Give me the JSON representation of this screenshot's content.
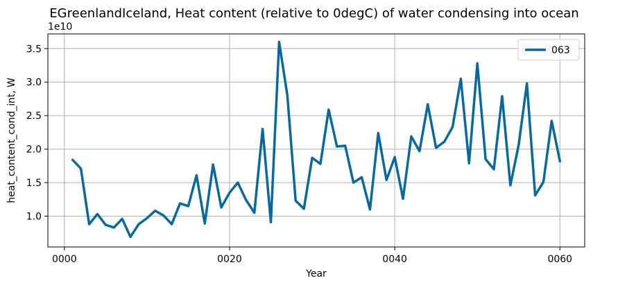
{
  "chart_data": {
    "type": "line",
    "title": "EGreenlandIceland, Heat content (relative to 0degC) of water condensing into ocean",
    "xlabel": "Year",
    "ylabel": "heat_content_cond_int, W",
    "y_scale_label": "1e10",
    "x_ticks": [
      "0000",
      "0020",
      "0040",
      "0060"
    ],
    "y_ticks": [
      "1.0",
      "1.5",
      "2.0",
      "2.5",
      "3.0",
      "3.5"
    ],
    "xlim": [
      -2.0,
      63.0
    ],
    "ylim": [
      0.54,
      3.72
    ],
    "grid": true,
    "legend_position": "top-right",
    "series": [
      {
        "name": "063",
        "color": "#0868a0",
        "x": [
          1,
          2,
          3,
          4,
          5,
          6,
          7,
          8,
          9,
          10,
          11,
          12,
          13,
          14,
          15,
          16,
          17,
          18,
          19,
          20,
          21,
          22,
          23,
          24,
          25,
          26,
          27,
          28,
          29,
          30,
          31,
          32,
          33,
          34,
          35,
          36,
          37,
          38,
          39,
          40,
          41,
          42,
          43,
          44,
          45,
          46,
          47,
          48,
          49,
          50,
          51,
          52,
          53,
          54,
          55,
          56,
          57,
          58,
          59,
          60
        ],
        "values": [
          1.84,
          1.71,
          0.88,
          1.03,
          0.87,
          0.83,
          0.96,
          0.69,
          0.88,
          0.97,
          1.08,
          1.01,
          0.88,
          1.19,
          1.15,
          1.61,
          0.89,
          1.77,
          1.13,
          1.35,
          1.5,
          1.24,
          1.05,
          2.3,
          0.91,
          3.6,
          2.8,
          1.23,
          1.11,
          1.87,
          1.78,
          2.59,
          2.04,
          2.05,
          1.5,
          1.58,
          1.1,
          2.24,
          1.54,
          1.88,
          1.26,
          2.19,
          1.97,
          2.67,
          2.02,
          2.11,
          2.33,
          3.05,
          1.79,
          3.28,
          1.85,
          1.7,
          2.79,
          1.46,
          2.06,
          2.98,
          1.31,
          1.51,
          2.42,
          1.82
        ]
      }
    ]
  }
}
